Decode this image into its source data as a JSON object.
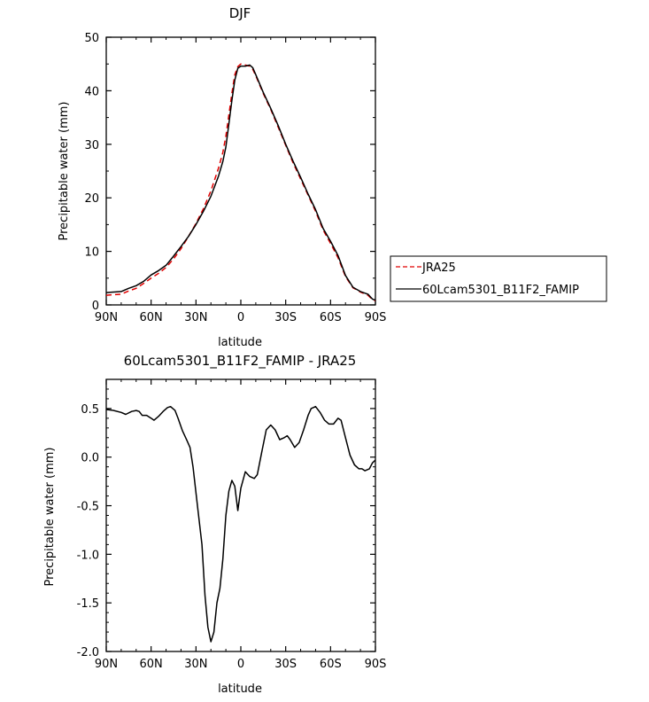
{
  "chart_data": [
    {
      "type": "line",
      "title": "DJF",
      "xlabel": "latitude",
      "ylabel": "Precipitable water (mm)",
      "xlim": [
        90,
        -90
      ],
      "ylim": [
        0,
        50
      ],
      "x_tick_values": [
        90,
        60,
        30,
        0,
        -30,
        -60,
        -90
      ],
      "x_tick_labels": [
        "90N",
        "60N",
        "30N",
        "0",
        "30S",
        "60S",
        "90S"
      ],
      "y_ticks": [
        0,
        10,
        20,
        30,
        40,
        50
      ],
      "grid": false,
      "legend": "outside-right",
      "series": [
        {
          "name": "JRA25",
          "color": "#e00000",
          "dash": "dashed",
          "points": [
            [
              90,
              1.8
            ],
            [
              85,
              1.9
            ],
            [
              80,
              2.0
            ],
            [
              75,
              2.6
            ],
            [
              70,
              3.1
            ],
            [
              65,
              4.0
            ],
            [
              60,
              5.0
            ],
            [
              55,
              5.9
            ],
            [
              50,
              7.0
            ],
            [
              45,
              8.6
            ],
            [
              40,
              10.5
            ],
            [
              35,
              12.8
            ],
            [
              30,
              15.2
            ],
            [
              25,
              18.0
            ],
            [
              20,
              21.3
            ],
            [
              15,
              25.5
            ],
            [
              12,
              28.5
            ],
            [
              10,
              31.5
            ],
            [
              8,
              35.5
            ],
            [
              6,
              39.5
            ],
            [
              4,
              43.0
            ],
            [
              2,
              44.5
            ],
            [
              0,
              45.0
            ],
            [
              -3,
              44.8
            ],
            [
              -6,
              44.6
            ],
            [
              -8,
              44.0
            ],
            [
              -10,
              42.8
            ],
            [
              -15,
              39.5
            ],
            [
              -20,
              36.5
            ],
            [
              -25,
              33.2
            ],
            [
              -30,
              29.8
            ],
            [
              -35,
              26.5
            ],
            [
              -40,
              23.5
            ],
            [
              -45,
              20.5
            ],
            [
              -50,
              17.5
            ],
            [
              -55,
              14.0
            ],
            [
              -60,
              11.5
            ],
            [
              -65,
              8.8
            ],
            [
              -70,
              5.3
            ],
            [
              -75,
              3.2
            ],
            [
              -80,
              2.4
            ],
            [
              -85,
              1.8
            ],
            [
              -88,
              1.0
            ],
            [
              -90,
              0.8
            ]
          ]
        },
        {
          "name": "60Lcam5301_B11F2_FAMIP",
          "color": "#000000",
          "dash": "solid",
          "points": [
            [
              90,
              2.3
            ],
            [
              85,
              2.4
            ],
            [
              80,
              2.5
            ],
            [
              75,
              3.1
            ],
            [
              70,
              3.6
            ],
            [
              65,
              4.4
            ],
            [
              60,
              5.6
            ],
            [
              55,
              6.4
            ],
            [
              50,
              7.4
            ],
            [
              45,
              9.1
            ],
            [
              40,
              10.9
            ],
            [
              35,
              12.8
            ],
            [
              30,
              15.0
            ],
            [
              25,
              17.5
            ],
            [
              20,
              20.3
            ],
            [
              15,
              24.0
            ],
            [
              12,
              26.8
            ],
            [
              10,
              29.5
            ],
            [
              8,
              33.8
            ],
            [
              6,
              38.2
            ],
            [
              4,
              42.0
            ],
            [
              2,
              44.2
            ],
            [
              0,
              44.6
            ],
            [
              -3,
              44.6
            ],
            [
              -6,
              44.8
            ],
            [
              -8,
              44.3
            ],
            [
              -10,
              43.0
            ],
            [
              -15,
              39.7
            ],
            [
              -20,
              36.7
            ],
            [
              -25,
              33.5
            ],
            [
              -30,
              30.0
            ],
            [
              -35,
              26.8
            ],
            [
              -40,
              23.8
            ],
            [
              -45,
              20.7
            ],
            [
              -50,
              17.8
            ],
            [
              -55,
              14.3
            ],
            [
              -60,
              11.9
            ],
            [
              -65,
              9.2
            ],
            [
              -70,
              5.5
            ],
            [
              -75,
              3.3
            ],
            [
              -80,
              2.5
            ],
            [
              -85,
              2.0
            ],
            [
              -88,
              1.1
            ],
            [
              -90,
              0.9
            ]
          ]
        }
      ]
    },
    {
      "type": "line",
      "title": "60Lcam5301_B11F2_FAMIP - JRA25",
      "xlabel": "latitude",
      "ylabel": "Precipitable water (mm)",
      "xlim": [
        90,
        -90
      ],
      "ylim": [
        -2.0,
        0.8
      ],
      "x_tick_values": [
        90,
        60,
        30,
        0,
        -30,
        -60,
        -90
      ],
      "x_tick_labels": [
        "90N",
        "60N",
        "30N",
        "0",
        "30S",
        "60S",
        "90S"
      ],
      "y_ticks": [
        0.5,
        0.0,
        -0.5,
        -1.0,
        -1.5,
        -2.0
      ],
      "y_tick_labels": [
        "0.5",
        "0.0",
        "-0.5",
        "-1.0",
        "-1.5",
        "-2.0"
      ],
      "grid": false,
      "series": [
        {
          "color": "#000000",
          "dash": "solid",
          "points": [
            [
              90,
              0.49
            ],
            [
              85,
              0.48
            ],
            [
              80,
              0.46
            ],
            [
              77,
              0.44
            ],
            [
              73,
              0.47
            ],
            [
              70,
              0.48
            ],
            [
              68,
              0.47
            ],
            [
              66,
              0.43
            ],
            [
              63,
              0.43
            ],
            [
              60,
              0.4
            ],
            [
              58,
              0.38
            ],
            [
              55,
              0.42
            ],
            [
              52,
              0.47
            ],
            [
              49,
              0.51
            ],
            [
              47,
              0.52
            ],
            [
              44,
              0.48
            ],
            [
              42,
              0.4
            ],
            [
              39,
              0.27
            ],
            [
              36,
              0.17
            ],
            [
              34,
              0.1
            ],
            [
              32,
              -0.1
            ],
            [
              29,
              -0.5
            ],
            [
              26,
              -0.9
            ],
            [
              24,
              -1.42
            ],
            [
              22,
              -1.75
            ],
            [
              20,
              -1.9
            ],
            [
              18,
              -1.8
            ],
            [
              16,
              -1.5
            ],
            [
              14,
              -1.35
            ],
            [
              12,
              -1.05
            ],
            [
              10,
              -0.6
            ],
            [
              8,
              -0.35
            ],
            [
              6,
              -0.24
            ],
            [
              4,
              -0.3
            ],
            [
              2,
              -0.55
            ],
            [
              0,
              -0.32
            ],
            [
              -3,
              -0.15
            ],
            [
              -6,
              -0.2
            ],
            [
              -9,
              -0.22
            ],
            [
              -11,
              -0.18
            ],
            [
              -14,
              0.05
            ],
            [
              -17,
              0.28
            ],
            [
              -20,
              0.33
            ],
            [
              -23,
              0.28
            ],
            [
              -26,
              0.18
            ],
            [
              -29,
              0.2
            ],
            [
              -31,
              0.22
            ],
            [
              -33,
              0.18
            ],
            [
              -36,
              0.1
            ],
            [
              -39,
              0.15
            ],
            [
              -42,
              0.28
            ],
            [
              -45,
              0.43
            ],
            [
              -47,
              0.5
            ],
            [
              -50,
              0.52
            ],
            [
              -53,
              0.46
            ],
            [
              -56,
              0.38
            ],
            [
              -59,
              0.34
            ],
            [
              -62,
              0.34
            ],
            [
              -65,
              0.4
            ],
            [
              -67,
              0.38
            ],
            [
              -70,
              0.2
            ],
            [
              -73,
              0.02
            ],
            [
              -76,
              -0.08
            ],
            [
              -79,
              -0.12
            ],
            [
              -81,
              -0.12
            ],
            [
              -83,
              -0.14
            ],
            [
              -86,
              -0.12
            ],
            [
              -88,
              -0.06
            ],
            [
              -90,
              -0.03
            ]
          ]
        }
      ]
    }
  ]
}
